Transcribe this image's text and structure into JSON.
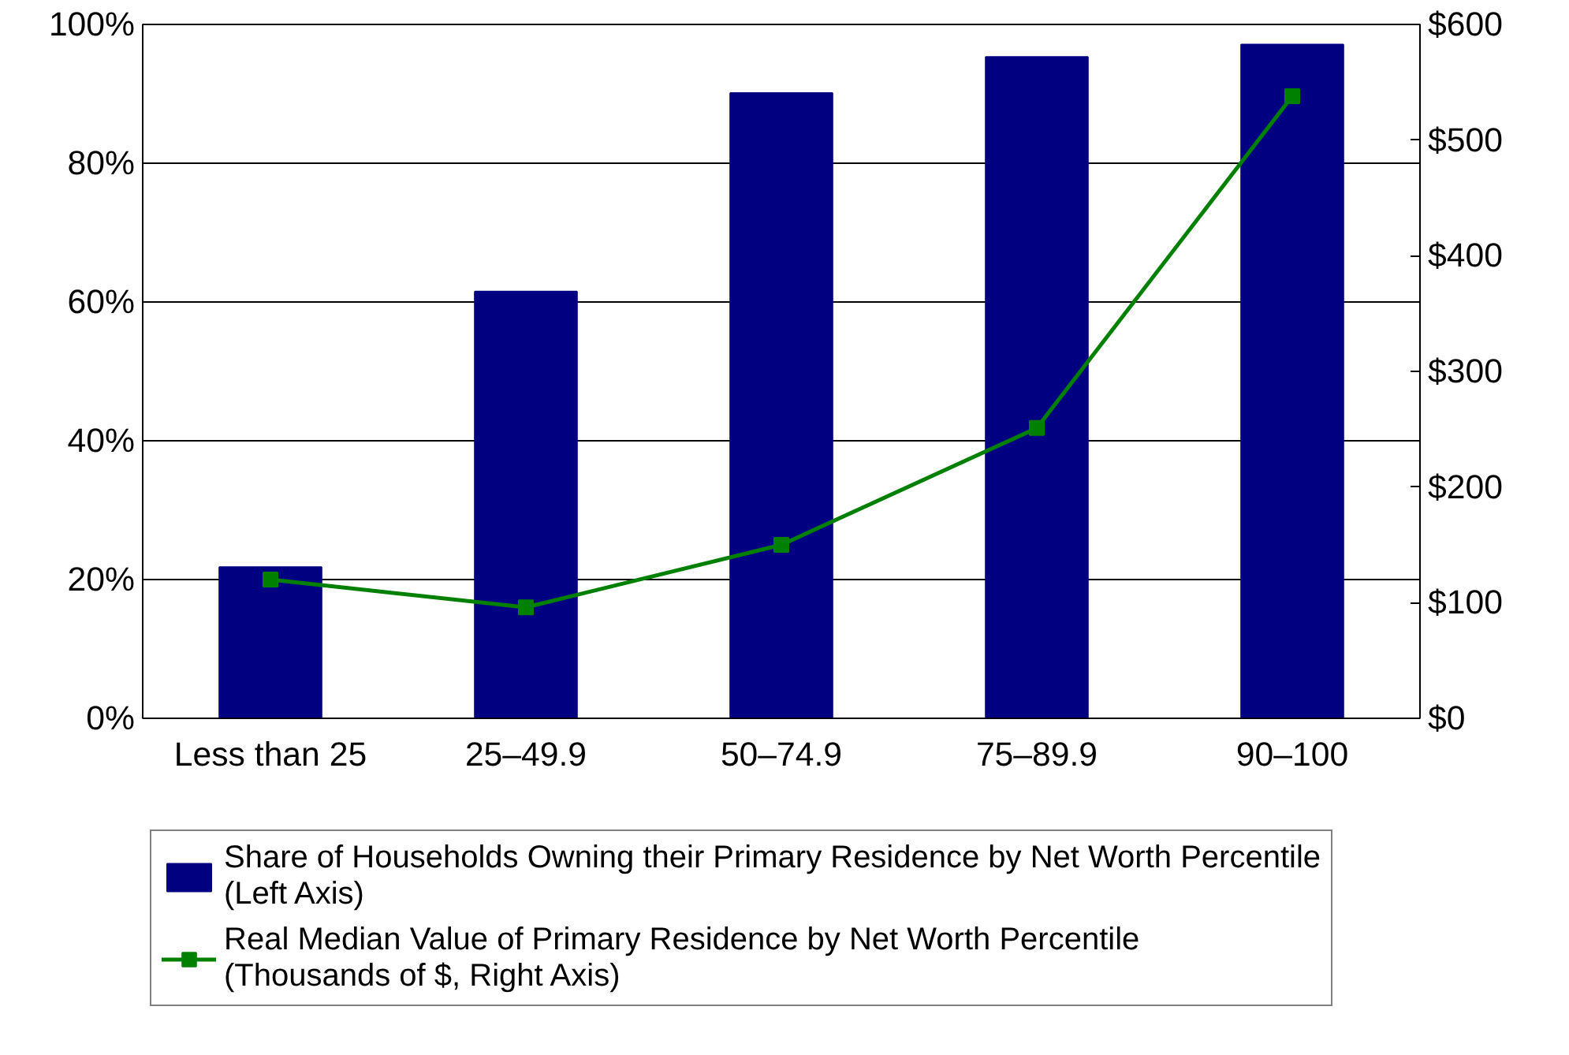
{
  "chart_data": {
    "type": "bar",
    "categories": [
      "Less than 25",
      "25–49.9",
      "50–74.9",
      "75–89.9",
      "90–100"
    ],
    "series": [
      {
        "name": "Share of Households Owning their Primary Residence by Net Worth Percentile (Left Axis)",
        "color": "#000080",
        "values": [
          21.8,
          61.5,
          90.1,
          95.3,
          97.1
        ]
      },
      {
        "name": "Real Median Value of Primary Residence by Net Worth Percentile (Thousands of $, Right Axis)",
        "type": "line",
        "axis": "y2",
        "color": "#008000",
        "values": [
          120,
          96,
          150,
          251,
          538
        ]
      }
    ],
    "ylim": [
      0,
      100
    ],
    "yticks": [
      {
        "value": 0,
        "label": "0%"
      },
      {
        "value": 20,
        "label": "20%"
      },
      {
        "value": 40,
        "label": "40%"
      },
      {
        "value": 60,
        "label": "60%"
      },
      {
        "value": 80,
        "label": "80%"
      },
      {
        "value": 100,
        "label": "100%"
      }
    ],
    "y2lim": [
      0,
      600
    ],
    "y2ticks": [
      {
        "value": 0,
        "label": "$0"
      },
      {
        "value": 100,
        "label": "$100"
      },
      {
        "value": 200,
        "label": "$200"
      },
      {
        "value": 300,
        "label": "$300"
      },
      {
        "value": 400,
        "label": "$400"
      },
      {
        "value": 500,
        "label": "$500"
      },
      {
        "value": 600,
        "label": "$600"
      }
    ],
    "grid": "y",
    "legend": "bottom",
    "marker": "square",
    "line_style": "solid"
  }
}
